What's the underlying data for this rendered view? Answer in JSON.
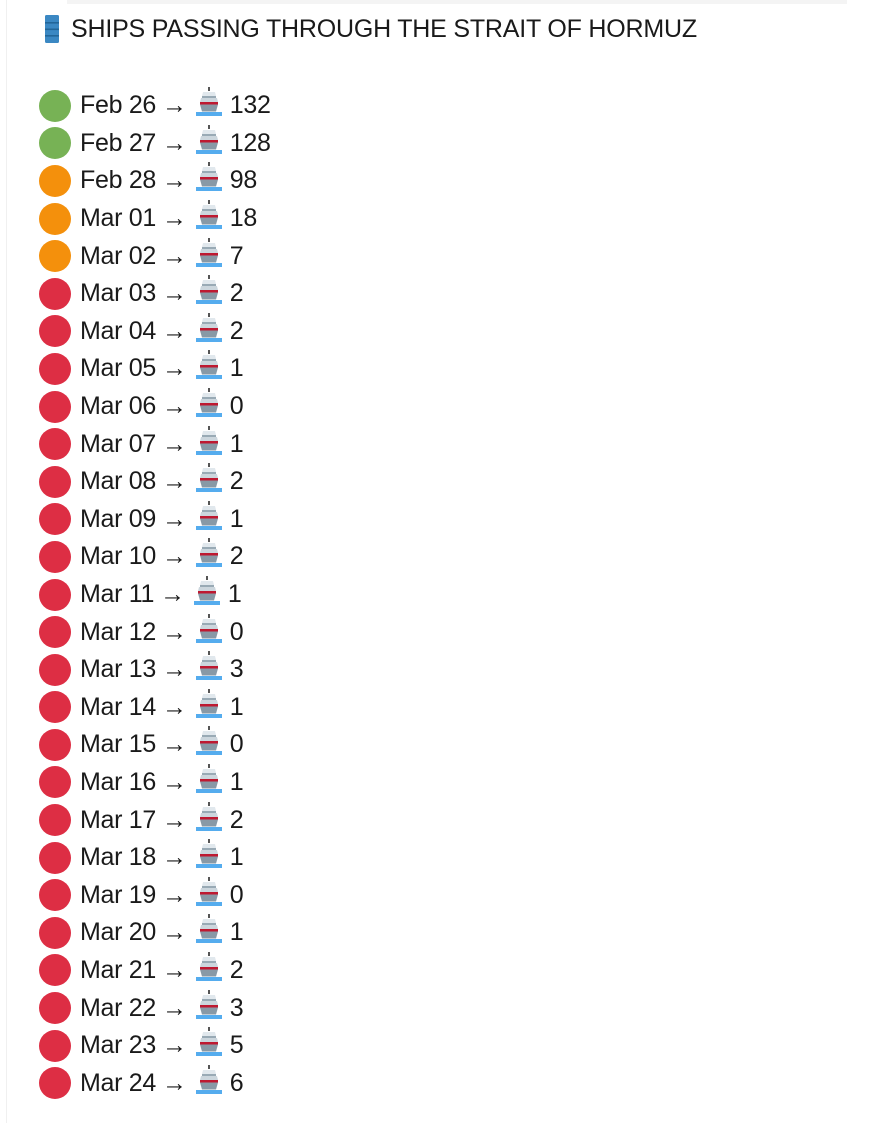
{
  "title": {
    "icon": "oil-drum-icon",
    "text": "SHIPS PASSING THROUGH THE STRAIT OF HORMUZ"
  },
  "status_colors": {
    "green": "#77b255",
    "orange": "#f4900c",
    "red": "#dd2e44"
  },
  "arrow": "→",
  "ship_icon": "ship-icon",
  "rows": [
    {
      "date": "Feb 26",
      "count": "132",
      "status": "green"
    },
    {
      "date": "Feb 27",
      "count": "128",
      "status": "green"
    },
    {
      "date": "Feb 28",
      "count": "98",
      "status": "orange"
    },
    {
      "date": "Mar 01",
      "count": "18",
      "status": "orange"
    },
    {
      "date": "Mar 02",
      "count": "7",
      "status": "orange"
    },
    {
      "date": "Mar 03",
      "count": "2",
      "status": "red"
    },
    {
      "date": "Mar 04",
      "count": "2",
      "status": "red"
    },
    {
      "date": "Mar 05",
      "count": "1",
      "status": "red"
    },
    {
      "date": "Mar 06",
      "count": "0",
      "status": "red"
    },
    {
      "date": "Mar 07",
      "count": "1",
      "status": "red"
    },
    {
      "date": "Mar 08",
      "count": "2",
      "status": "red"
    },
    {
      "date": "Mar 09",
      "count": "1",
      "status": "red"
    },
    {
      "date": "Mar 10",
      "count": "2",
      "status": "red"
    },
    {
      "date": "Mar 11",
      "count": "1",
      "status": "red"
    },
    {
      "date": "Mar 12",
      "count": "0",
      "status": "red"
    },
    {
      "date": "Mar 13",
      "count": "3",
      "status": "red"
    },
    {
      "date": "Mar 14",
      "count": "1",
      "status": "red"
    },
    {
      "date": "Mar 15",
      "count": "0",
      "status": "red"
    },
    {
      "date": "Mar 16",
      "count": "1",
      "status": "red"
    },
    {
      "date": "Mar 17",
      "count": "2",
      "status": "red"
    },
    {
      "date": "Mar 18",
      "count": "1",
      "status": "red"
    },
    {
      "date": "Mar 19",
      "count": "0",
      "status": "red"
    },
    {
      "date": "Mar 20",
      "count": "1",
      "status": "red"
    },
    {
      "date": "Mar 21",
      "count": "2",
      "status": "red"
    },
    {
      "date": "Mar 22",
      "count": "3",
      "status": "red"
    },
    {
      "date": "Mar 23",
      "count": "5",
      "status": "red"
    },
    {
      "date": "Mar 24",
      "count": "6",
      "status": "red"
    }
  ]
}
